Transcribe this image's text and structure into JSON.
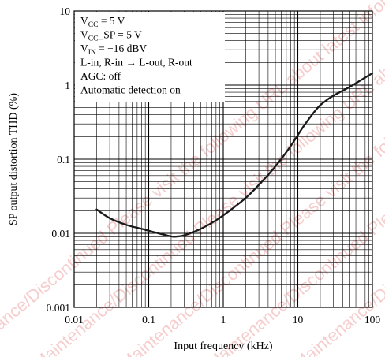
{
  "chart_data": {
    "type": "line",
    "title": "",
    "xlabel": "Input frequency  (kHz)",
    "ylabel": "SP output distortion  THD  (%)",
    "x_scale": "log",
    "y_scale": "log",
    "xlim": [
      0.01,
      100
    ],
    "ylim": [
      0.001,
      10
    ],
    "x_ticks": [
      "0.01",
      "0.1",
      "1",
      "10",
      "100"
    ],
    "y_ticks": [
      "0.001",
      "0.01",
      "0.1",
      "1",
      "10"
    ],
    "grid": true,
    "legend": {
      "placement": "top-left",
      "lines": [
        {
          "main": "V",
          "sub": "CC",
          "rest": " = 5 V"
        },
        {
          "main": "V",
          "sub": "CC",
          "rest": "_SP = 5 V"
        },
        {
          "main": "V",
          "sub": "IN",
          "rest": " = −16 dBV"
        },
        {
          "main": "L-in, R-in → L-out, R-out",
          "sub": "",
          "rest": ""
        },
        {
          "main": "AGC: off",
          "sub": "",
          "rest": ""
        },
        {
          "main": "Automatic detection on",
          "sub": "",
          "rest": ""
        }
      ]
    },
    "series": [
      {
        "x": [
          0.02,
          0.03,
          0.05,
          0.08,
          0.12,
          0.18,
          0.22,
          0.3,
          0.5,
          0.8,
          1.2,
          2,
          3,
          5,
          8,
          12,
          18,
          22,
          30,
          50,
          100
        ],
        "y": [
          0.021,
          0.016,
          0.013,
          0.0115,
          0.0103,
          0.0093,
          0.009,
          0.0094,
          0.0115,
          0.015,
          0.02,
          0.03,
          0.045,
          0.08,
          0.15,
          0.28,
          0.48,
          0.58,
          0.72,
          0.95,
          1.45
        ],
        "color": "#1a1a1a"
      }
    ]
  },
  "watermark": {
    "text": "Maintenance/Discontinued  Please visit the following URL about latest information  https://industrial.panasonic.com",
    "color": "#e05050"
  }
}
